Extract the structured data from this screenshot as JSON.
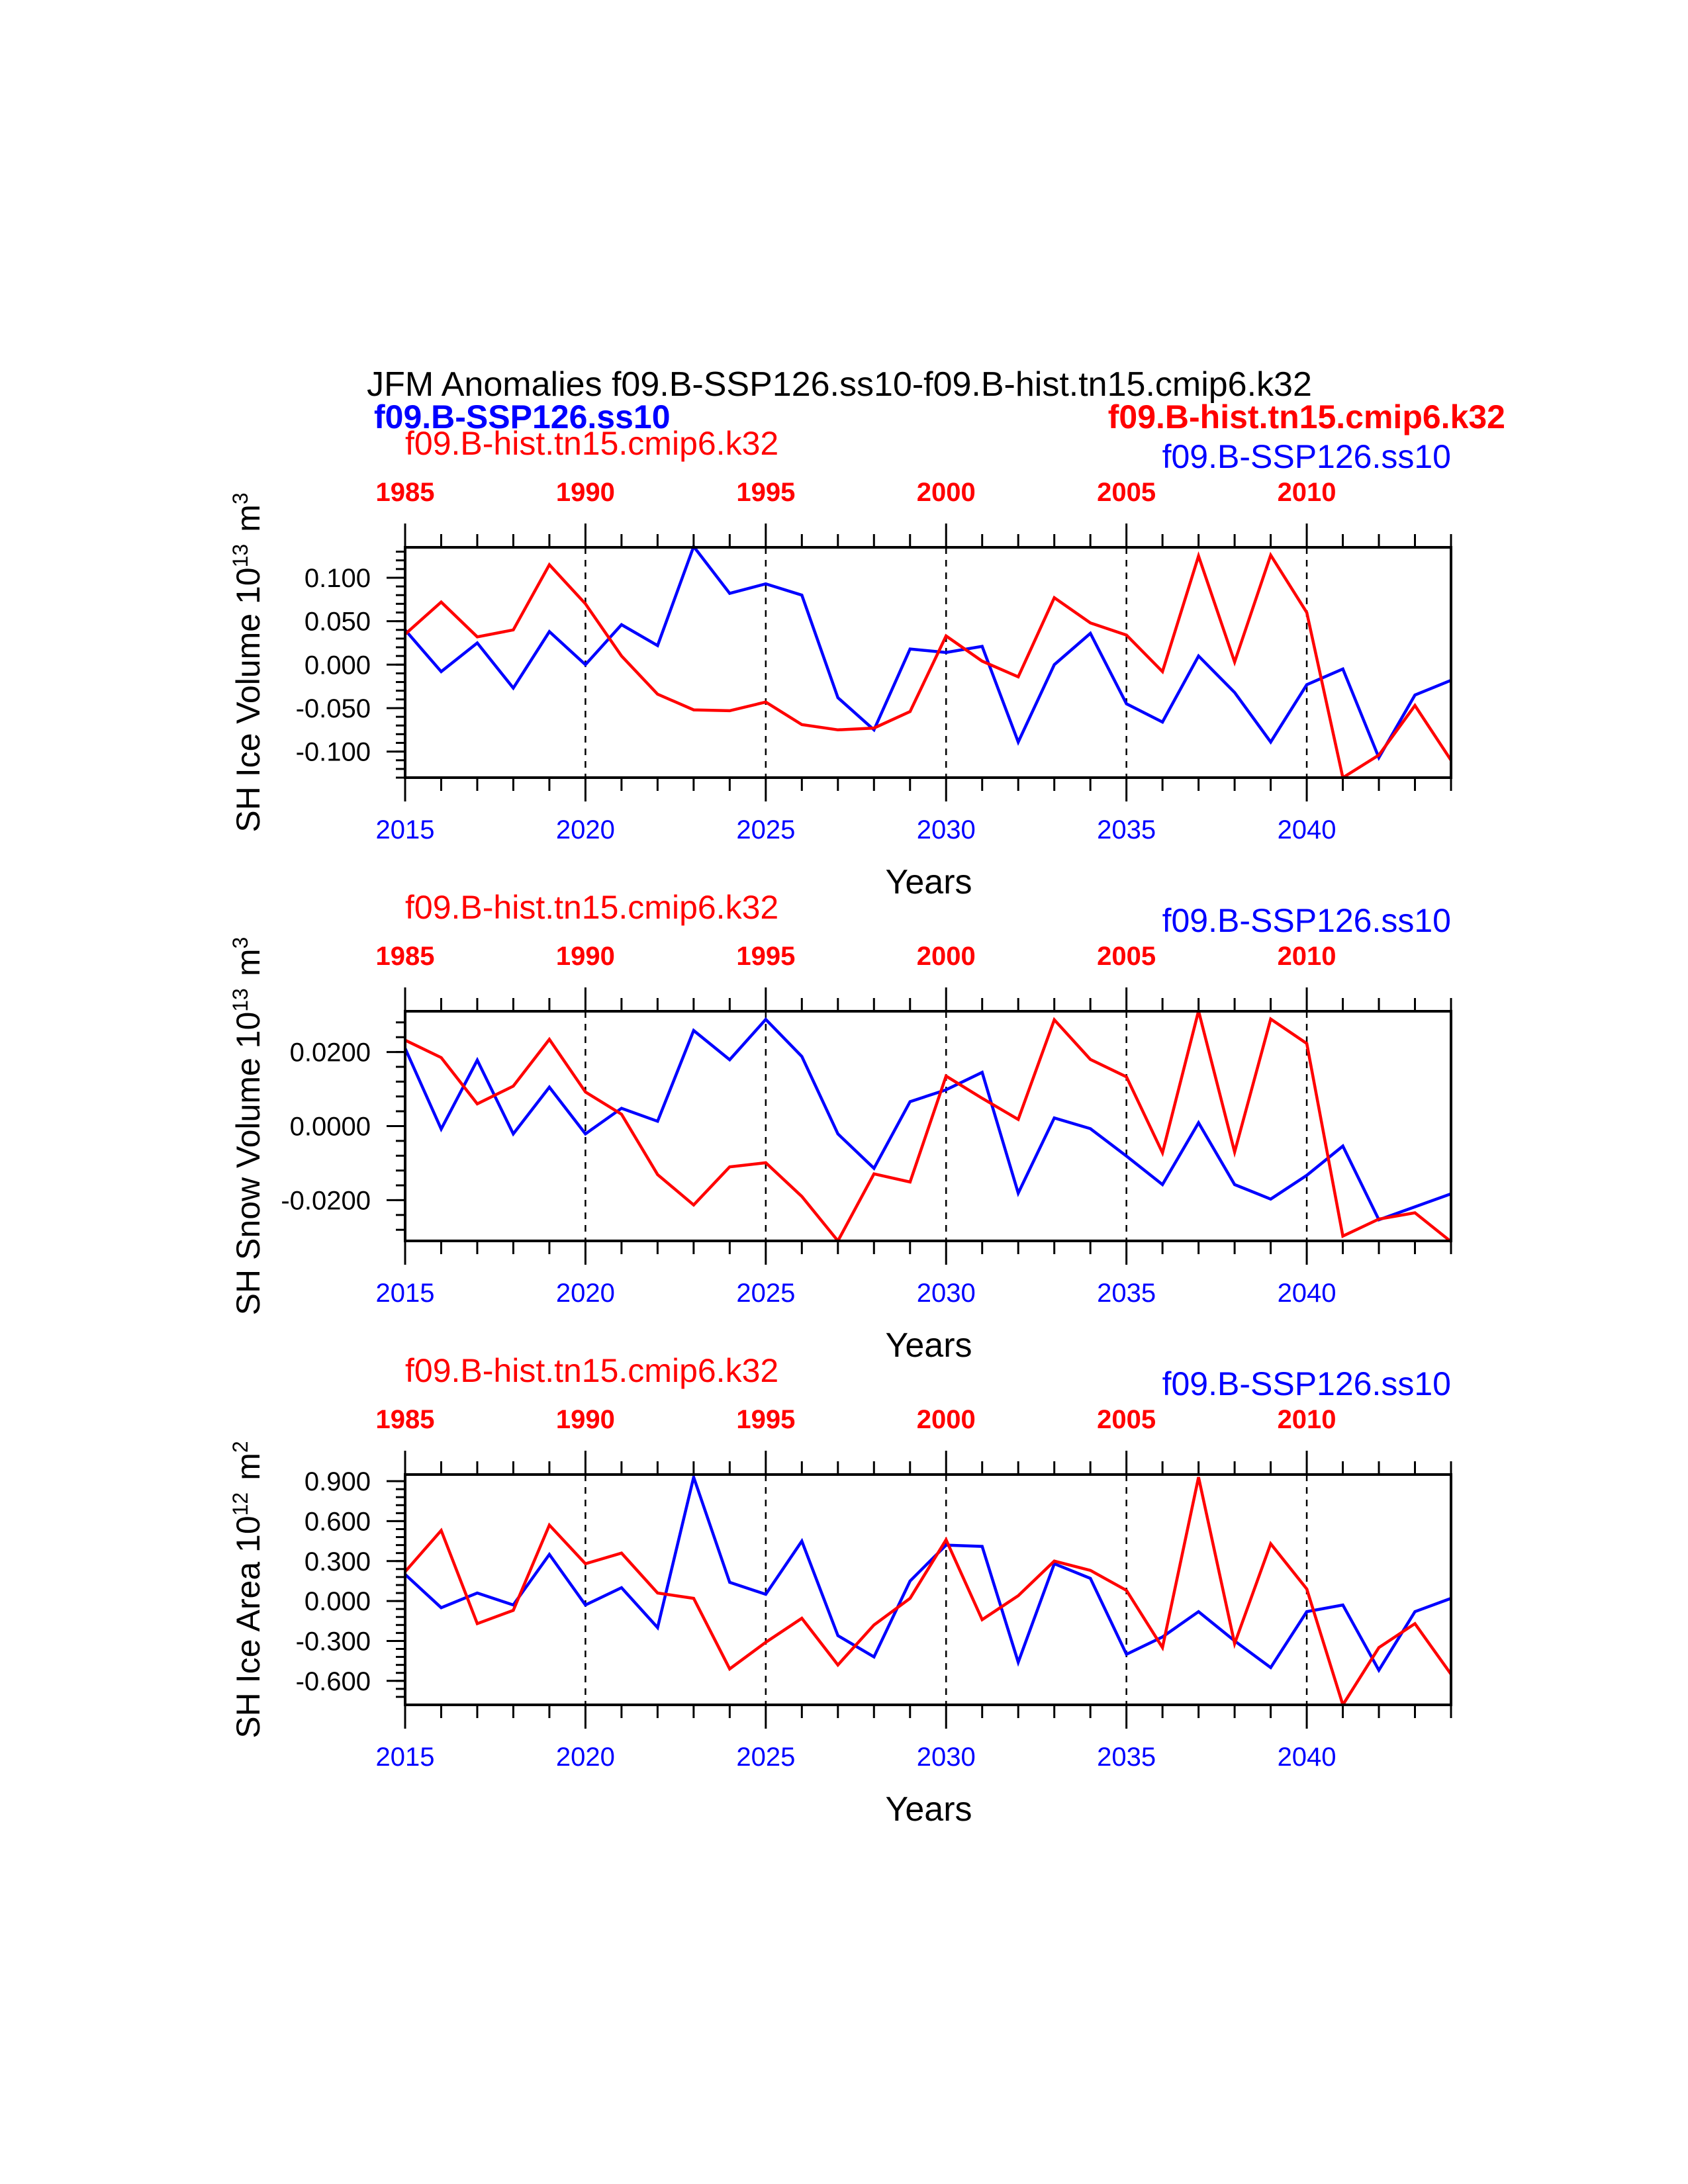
{
  "page": {
    "title": "JFM Anomalies f09.B-SSP126.ss10-f09.B-hist.tn15.cmip6.k32",
    "legend_left": "f09.B-SSP126.ss10",
    "legend_right": "f09.B-hist.tn15.cmip6.k32"
  },
  "colors": {
    "ssp": "#0000ff",
    "hist": "#ff0000",
    "axis": "#000000"
  },
  "chart_data": [
    {
      "type": "line",
      "ylabel": "SH Ice Volume 10",
      "ylabel_exp": "13",
      "ylabel_unit": "m",
      "ylabel_unit_exp": "3",
      "xlabel": "Years",
      "top_series_label": "f09.B-hist.tn15.cmip6.k32",
      "right_series_label": "f09.B-SSP126.ss10",
      "xlim": [
        2015,
        2044
      ],
      "ylim": [
        -0.13,
        0.135
      ],
      "yticks": [
        0.1,
        0.05,
        0.0,
        -0.05,
        -0.1
      ],
      "ytick_labels": [
        "0.100",
        "0.050",
        "0.000",
        "-0.050",
        "-0.100"
      ],
      "xticks": [
        2015,
        2020,
        2025,
        2030,
        2035,
        2040
      ],
      "xtick_labels": [
        "2015",
        "2020",
        "2025",
        "2030",
        "2035",
        "2040"
      ],
      "top_ticks": [
        1985,
        1990,
        1995,
        2000,
        2005,
        2010
      ],
      "top_tick_labels": [
        "1985",
        "1990",
        "1995",
        "2000",
        "2005",
        "2010"
      ],
      "x": [
        2015,
        2016,
        2017,
        2018,
        2019,
        2020,
        2021,
        2022,
        2023,
        2024,
        2025,
        2026,
        2027,
        2028,
        2029,
        2030,
        2031,
        2032,
        2033,
        2034,
        2035,
        2036,
        2037,
        2038,
        2039,
        2040,
        2041,
        2042,
        2043,
        2044
      ],
      "series": [
        {
          "color": "#0000ff",
          "values": [
            0.04,
            -0.008,
            0.025,
            -0.027,
            0.038,
            0.0,
            0.046,
            0.022,
            0.136,
            0.082,
            0.093,
            0.08,
            -0.038,
            -0.075,
            0.018,
            0.014,
            0.021,
            -0.089,
            0.0,
            0.036,
            -0.045,
            -0.066,
            0.01,
            -0.032,
            -0.089,
            -0.023,
            -0.005,
            -0.107,
            -0.035,
            -0.018
          ]
        },
        {
          "color": "#ff0000",
          "values": [
            0.035,
            0.072,
            0.032,
            0.04,
            0.115,
            0.07,
            0.01,
            -0.034,
            -0.052,
            -0.053,
            -0.043,
            -0.069,
            -0.075,
            -0.073,
            -0.054,
            0.033,
            0.004,
            -0.014,
            0.077,
            0.048,
            0.034,
            -0.008,
            0.125,
            0.003,
            0.126,
            0.06,
            -0.13,
            -0.104,
            -0.047,
            -0.11
          ]
        }
      ]
    },
    {
      "type": "line",
      "ylabel": "SH Snow Volume 10",
      "ylabel_exp": "13",
      "ylabel_unit": "m",
      "ylabel_unit_exp": "3",
      "xlabel": "Years",
      "top_series_label": "f09.B-hist.tn15.cmip6.k32",
      "right_series_label": "f09.B-SSP126.ss10",
      "xlim": [
        2015,
        2044
      ],
      "ylim": [
        -0.031,
        0.031
      ],
      "yticks": [
        0.02,
        0.0,
        -0.02
      ],
      "ytick_labels": [
        "0.0200",
        "0.0000",
        "-0.0200"
      ],
      "xticks": [
        2015,
        2020,
        2025,
        2030,
        2035,
        2040
      ],
      "xtick_labels": [
        "2015",
        "2020",
        "2025",
        "2030",
        "2035",
        "2040"
      ],
      "top_ticks": [
        1985,
        1990,
        1995,
        2000,
        2005,
        2010
      ],
      "top_tick_labels": [
        "1985",
        "1990",
        "1995",
        "2000",
        "2005",
        "2010"
      ],
      "x": [
        2015,
        2016,
        2017,
        2018,
        2019,
        2020,
        2021,
        2022,
        2023,
        2024,
        2025,
        2026,
        2027,
        2028,
        2029,
        2030,
        2031,
        2032,
        2033,
        2034,
        2035,
        2036,
        2037,
        2038,
        2039,
        2040,
        2041,
        2042,
        2043,
        2044
      ],
      "series": [
        {
          "color": "#0000ff",
          "values": [
            0.021,
            -0.0008,
            0.0178,
            -0.0021,
            0.0105,
            -0.0021,
            0.0048,
            0.0013,
            0.0258,
            0.0179,
            0.0288,
            0.0188,
            -0.0021,
            -0.0114,
            0.0066,
            0.0098,
            0.0145,
            -0.0181,
            0.0022,
            -0.0007,
            -0.0081,
            -0.0158,
            0.0009,
            -0.0158,
            -0.0197,
            -0.0133,
            -0.0054,
            -0.0253,
            -0.0218,
            -0.0183
          ]
        },
        {
          "color": "#ff0000",
          "values": [
            0.0232,
            0.0185,
            0.006,
            0.0108,
            0.0234,
            0.0092,
            0.0032,
            -0.0131,
            -0.0213,
            -0.011,
            -0.0099,
            -0.019,
            -0.031,
            -0.0129,
            -0.0151,
            0.0135,
            0.0075,
            0.0018,
            0.0287,
            0.018,
            0.0133,
            -0.0072,
            0.0311,
            -0.007,
            0.0289,
            0.0223,
            -0.0297,
            -0.0251,
            -0.0234,
            -0.0312
          ]
        }
      ]
    },
    {
      "type": "line",
      "ylabel": "SH Ice Area 10",
      "ylabel_exp": "12",
      "ylabel_unit": "m",
      "ylabel_unit_exp": "2",
      "xlabel": "Years",
      "top_series_label": "f09.B-hist.tn15.cmip6.k32",
      "right_series_label": "f09.B-SSP126.ss10",
      "xlim": [
        2015,
        2044
      ],
      "ylim": [
        -0.78,
        0.95
      ],
      "yticks": [
        0.9,
        0.6,
        0.3,
        0.0,
        -0.3,
        -0.6
      ],
      "ytick_labels": [
        "0.900",
        "0.600",
        "0.300",
        "0.000",
        "-0.300",
        "-0.600"
      ],
      "xticks": [
        2015,
        2020,
        2025,
        2030,
        2035,
        2040
      ],
      "xtick_labels": [
        "2015",
        "2020",
        "2025",
        "2030",
        "2035",
        "2040"
      ],
      "top_ticks": [
        1985,
        1990,
        1995,
        2000,
        2005,
        2010
      ],
      "top_tick_labels": [
        "1985",
        "1990",
        "1995",
        "2000",
        "2005",
        "2010"
      ],
      "x": [
        2015,
        2016,
        2017,
        2018,
        2019,
        2020,
        2021,
        2022,
        2023,
        2024,
        2025,
        2026,
        2027,
        2028,
        2029,
        2030,
        2031,
        2032,
        2033,
        2034,
        2035,
        2036,
        2037,
        2038,
        2039,
        2040,
        2041,
        2042,
        2043,
        2044
      ],
      "series": [
        {
          "color": "#0000ff",
          "values": [
            0.2,
            -0.05,
            0.06,
            -0.03,
            0.35,
            -0.03,
            0.1,
            -0.2,
            0.93,
            0.14,
            0.05,
            0.45,
            -0.26,
            -0.42,
            0.15,
            0.42,
            0.41,
            -0.46,
            0.28,
            0.17,
            -0.4,
            -0.27,
            -0.08,
            -0.3,
            -0.5,
            -0.08,
            -0.03,
            -0.52,
            -0.08,
            0.02
          ]
        },
        {
          "color": "#ff0000",
          "values": [
            0.22,
            0.53,
            -0.17,
            -0.07,
            0.57,
            0.28,
            0.36,
            0.06,
            0.02,
            -0.51,
            -0.31,
            -0.13,
            -0.48,
            -0.18,
            0.02,
            0.46,
            -0.14,
            0.04,
            0.3,
            0.23,
            0.08,
            -0.35,
            0.93,
            -0.32,
            0.43,
            0.09,
            -0.78,
            -0.35,
            -0.17,
            -0.55
          ]
        }
      ]
    }
  ]
}
